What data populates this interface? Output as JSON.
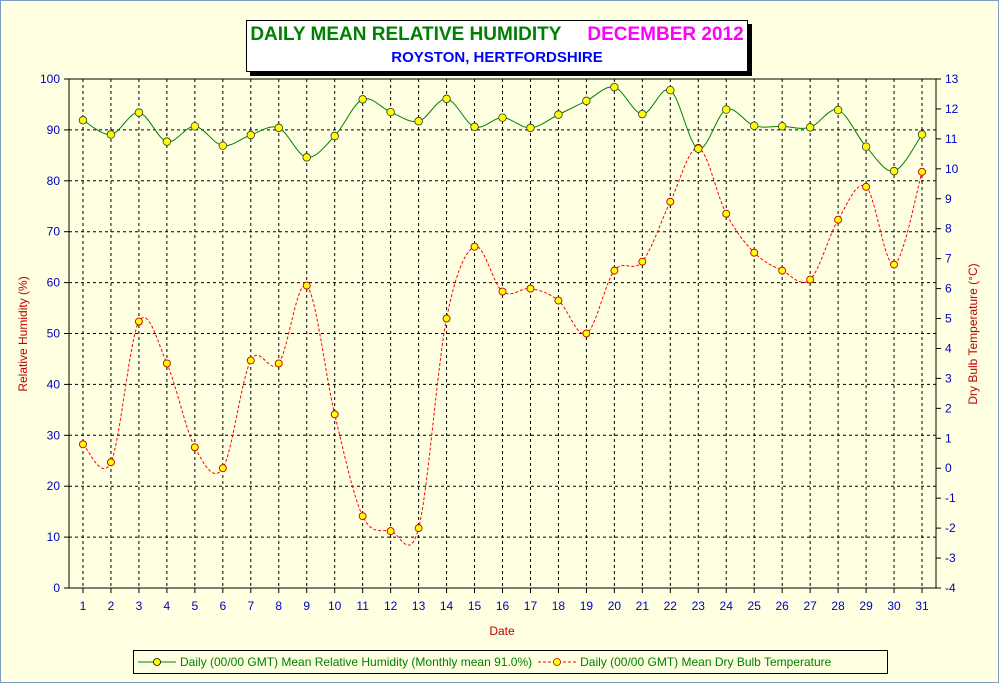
{
  "window": {
    "frame_color": "#7a9ac8",
    "background": "#ffffe1"
  },
  "header": {
    "title": "DAILY MEAN RELATIVE HUMIDITY",
    "month": "DECEMBER 2012",
    "subtitle": "ROYSTON, HERTFORDSHIRE"
  },
  "chart_data": {
    "type": "line",
    "title": "DAILY MEAN RELATIVE HUMIDITY",
    "subtitle": "ROYSTON, HERTFORDSHIRE",
    "xlabel": "Date",
    "ylabel": "Relative Humidity (%)",
    "y2label": "Dry Bulb Temperature (°C)",
    "x": [
      1,
      2,
      3,
      4,
      5,
      6,
      7,
      8,
      9,
      10,
      11,
      12,
      13,
      14,
      15,
      16,
      17,
      18,
      19,
      20,
      21,
      22,
      23,
      24,
      25,
      26,
      27,
      28,
      29,
      30,
      31
    ],
    "ylim": [
      0,
      100
    ],
    "y_ticks": [
      0,
      10,
      20,
      30,
      40,
      50,
      60,
      70,
      80,
      90,
      100
    ],
    "y2lim": [
      -4,
      13
    ],
    "y2_ticks": [
      -4,
      -3,
      -2,
      -1,
      0,
      1,
      2,
      3,
      4,
      5,
      6,
      7,
      8,
      9,
      10,
      11,
      12,
      13
    ],
    "grid": true,
    "legend_position": "bottom",
    "series": [
      {
        "name": "Daily (00/00 GMT) Mean Relative Humidity (Monthly mean 91.0%)",
        "axis": "left",
        "color": "#008000",
        "marker_color": "#ffff00",
        "line_style": "solid",
        "values": [
          91.9,
          89.1,
          93.4,
          87.7,
          90.7,
          86.9,
          89.0,
          90.4,
          84.6,
          88.8,
          96.0,
          93.5,
          91.7,
          96.1,
          90.6,
          92.4,
          90.4,
          93.0,
          95.7,
          98.4,
          93.1,
          97.8,
          86.3,
          94.0,
          90.8,
          90.7,
          90.5,
          93.9,
          86.7,
          81.9,
          89.1
        ]
      },
      {
        "name": "Daily (00/00 GMT) Mean Dry Bulb Temperature",
        "axis": "right",
        "color": "#ff0000",
        "marker_color": "#ffff00",
        "line_style": "dashed",
        "values": [
          0.8,
          0.2,
          4.9,
          3.5,
          0.7,
          0.0,
          3.6,
          3.5,
          6.1,
          1.8,
          -1.6,
          -2.1,
          -2.0,
          5.0,
          7.4,
          5.9,
          6.0,
          5.6,
          4.5,
          6.6,
          6.9,
          8.9,
          10.7,
          8.5,
          7.2,
          6.6,
          6.3,
          8.3,
          9.4,
          6.8,
          9.9
        ]
      }
    ]
  }
}
